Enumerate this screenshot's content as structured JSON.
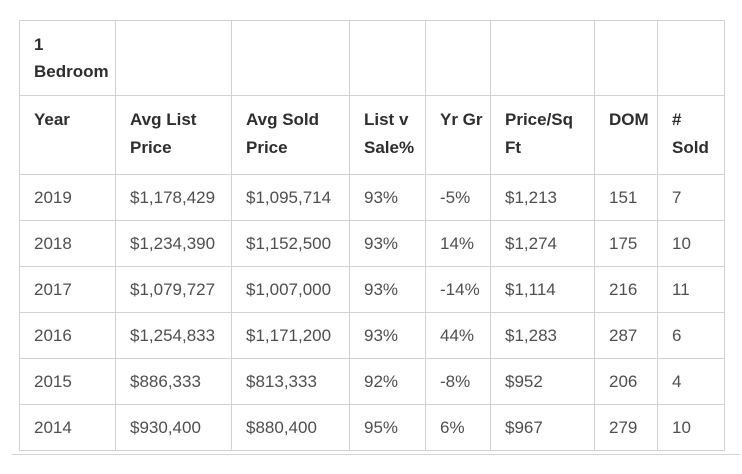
{
  "chart_data": {
    "type": "table",
    "title": "1 Bedroom",
    "columns": [
      "Year",
      "Avg List Price",
      "Avg Sold Price",
      "List v Sale%",
      "Yr Gr",
      "Price/Sq Ft",
      "DOM",
      "# Sold"
    ],
    "rows": [
      [
        "2019",
        "$1,178,429",
        "$1,095,714",
        "93%",
        "-5%",
        "$1,213",
        "151",
        "7"
      ],
      [
        "2018",
        "$1,234,390",
        "$1,152,500",
        "93%",
        "14%",
        "$1,274",
        "175",
        "10"
      ],
      [
        "2017",
        "$1,079,727",
        "$1,007,000",
        "93%",
        "-14%",
        "$1,114",
        "216",
        "11"
      ],
      [
        "2016",
        "$1,254,833",
        "$1,171,200",
        "93%",
        "44%",
        "$1,283",
        "287",
        "6"
      ],
      [
        "2015",
        "$886,333",
        "$813,333",
        "92%",
        "-8%",
        "$952",
        "206",
        "4"
      ],
      [
        "2014",
        "$930,400",
        "$880,400",
        "95%",
        "6%",
        "$967",
        "279",
        "10"
      ]
    ],
    "layout": {
      "border_color": "#d2d2d2",
      "header_text_color": "#2e2e2e",
      "body_text_color": "#4f4f4f",
      "background": "#ffffff"
    }
  }
}
